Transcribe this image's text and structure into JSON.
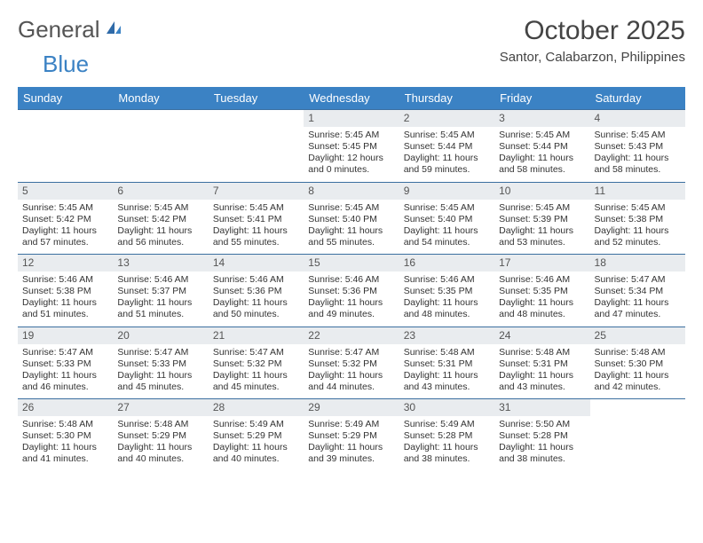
{
  "brand": {
    "text1": "General",
    "text2": "Blue"
  },
  "title": "October 2025",
  "location": "Santor, Calabarzon, Philippines",
  "colors": {
    "header_bg": "#3b82c4",
    "header_text": "#ffffff",
    "daynum_bg": "#e9ecef",
    "border": "#3b6fa0",
    "text": "#333333",
    "page_bg": "#ffffff"
  },
  "typography": {
    "title_fontsize": 30,
    "location_fontsize": 15,
    "dayhead_fontsize": 13,
    "daynum_fontsize": 12,
    "body_fontsize": 10.5
  },
  "dayheads": [
    "Sunday",
    "Monday",
    "Tuesday",
    "Wednesday",
    "Thursday",
    "Friday",
    "Saturday"
  ],
  "weeks": [
    [
      {
        "blank": true
      },
      {
        "blank": true
      },
      {
        "blank": true
      },
      {
        "n": "1",
        "sr": "Sunrise: 5:45 AM",
        "ss": "Sunset: 5:45 PM",
        "dl": "Daylight: 12 hours and 0 minutes."
      },
      {
        "n": "2",
        "sr": "Sunrise: 5:45 AM",
        "ss": "Sunset: 5:44 PM",
        "dl": "Daylight: 11 hours and 59 minutes."
      },
      {
        "n": "3",
        "sr": "Sunrise: 5:45 AM",
        "ss": "Sunset: 5:44 PM",
        "dl": "Daylight: 11 hours and 58 minutes."
      },
      {
        "n": "4",
        "sr": "Sunrise: 5:45 AM",
        "ss": "Sunset: 5:43 PM",
        "dl": "Daylight: 11 hours and 58 minutes."
      }
    ],
    [
      {
        "n": "5",
        "sr": "Sunrise: 5:45 AM",
        "ss": "Sunset: 5:42 PM",
        "dl": "Daylight: 11 hours and 57 minutes."
      },
      {
        "n": "6",
        "sr": "Sunrise: 5:45 AM",
        "ss": "Sunset: 5:42 PM",
        "dl": "Daylight: 11 hours and 56 minutes."
      },
      {
        "n": "7",
        "sr": "Sunrise: 5:45 AM",
        "ss": "Sunset: 5:41 PM",
        "dl": "Daylight: 11 hours and 55 minutes."
      },
      {
        "n": "8",
        "sr": "Sunrise: 5:45 AM",
        "ss": "Sunset: 5:40 PM",
        "dl": "Daylight: 11 hours and 55 minutes."
      },
      {
        "n": "9",
        "sr": "Sunrise: 5:45 AM",
        "ss": "Sunset: 5:40 PM",
        "dl": "Daylight: 11 hours and 54 minutes."
      },
      {
        "n": "10",
        "sr": "Sunrise: 5:45 AM",
        "ss": "Sunset: 5:39 PM",
        "dl": "Daylight: 11 hours and 53 minutes."
      },
      {
        "n": "11",
        "sr": "Sunrise: 5:45 AM",
        "ss": "Sunset: 5:38 PM",
        "dl": "Daylight: 11 hours and 52 minutes."
      }
    ],
    [
      {
        "n": "12",
        "sr": "Sunrise: 5:46 AM",
        "ss": "Sunset: 5:38 PM",
        "dl": "Daylight: 11 hours and 51 minutes."
      },
      {
        "n": "13",
        "sr": "Sunrise: 5:46 AM",
        "ss": "Sunset: 5:37 PM",
        "dl": "Daylight: 11 hours and 51 minutes."
      },
      {
        "n": "14",
        "sr": "Sunrise: 5:46 AM",
        "ss": "Sunset: 5:36 PM",
        "dl": "Daylight: 11 hours and 50 minutes."
      },
      {
        "n": "15",
        "sr": "Sunrise: 5:46 AM",
        "ss": "Sunset: 5:36 PM",
        "dl": "Daylight: 11 hours and 49 minutes."
      },
      {
        "n": "16",
        "sr": "Sunrise: 5:46 AM",
        "ss": "Sunset: 5:35 PM",
        "dl": "Daylight: 11 hours and 48 minutes."
      },
      {
        "n": "17",
        "sr": "Sunrise: 5:46 AM",
        "ss": "Sunset: 5:35 PM",
        "dl": "Daylight: 11 hours and 48 minutes."
      },
      {
        "n": "18",
        "sr": "Sunrise: 5:47 AM",
        "ss": "Sunset: 5:34 PM",
        "dl": "Daylight: 11 hours and 47 minutes."
      }
    ],
    [
      {
        "n": "19",
        "sr": "Sunrise: 5:47 AM",
        "ss": "Sunset: 5:33 PM",
        "dl": "Daylight: 11 hours and 46 minutes."
      },
      {
        "n": "20",
        "sr": "Sunrise: 5:47 AM",
        "ss": "Sunset: 5:33 PM",
        "dl": "Daylight: 11 hours and 45 minutes."
      },
      {
        "n": "21",
        "sr": "Sunrise: 5:47 AM",
        "ss": "Sunset: 5:32 PM",
        "dl": "Daylight: 11 hours and 45 minutes."
      },
      {
        "n": "22",
        "sr": "Sunrise: 5:47 AM",
        "ss": "Sunset: 5:32 PM",
        "dl": "Daylight: 11 hours and 44 minutes."
      },
      {
        "n": "23",
        "sr": "Sunrise: 5:48 AM",
        "ss": "Sunset: 5:31 PM",
        "dl": "Daylight: 11 hours and 43 minutes."
      },
      {
        "n": "24",
        "sr": "Sunrise: 5:48 AM",
        "ss": "Sunset: 5:31 PM",
        "dl": "Daylight: 11 hours and 43 minutes."
      },
      {
        "n": "25",
        "sr": "Sunrise: 5:48 AM",
        "ss": "Sunset: 5:30 PM",
        "dl": "Daylight: 11 hours and 42 minutes."
      }
    ],
    [
      {
        "n": "26",
        "sr": "Sunrise: 5:48 AM",
        "ss": "Sunset: 5:30 PM",
        "dl": "Daylight: 11 hours and 41 minutes."
      },
      {
        "n": "27",
        "sr": "Sunrise: 5:48 AM",
        "ss": "Sunset: 5:29 PM",
        "dl": "Daylight: 11 hours and 40 minutes."
      },
      {
        "n": "28",
        "sr": "Sunrise: 5:49 AM",
        "ss": "Sunset: 5:29 PM",
        "dl": "Daylight: 11 hours and 40 minutes."
      },
      {
        "n": "29",
        "sr": "Sunrise: 5:49 AM",
        "ss": "Sunset: 5:29 PM",
        "dl": "Daylight: 11 hours and 39 minutes."
      },
      {
        "n": "30",
        "sr": "Sunrise: 5:49 AM",
        "ss": "Sunset: 5:28 PM",
        "dl": "Daylight: 11 hours and 38 minutes."
      },
      {
        "n": "31",
        "sr": "Sunrise: 5:50 AM",
        "ss": "Sunset: 5:28 PM",
        "dl": "Daylight: 11 hours and 38 minutes."
      },
      {
        "blank": true
      }
    ]
  ]
}
